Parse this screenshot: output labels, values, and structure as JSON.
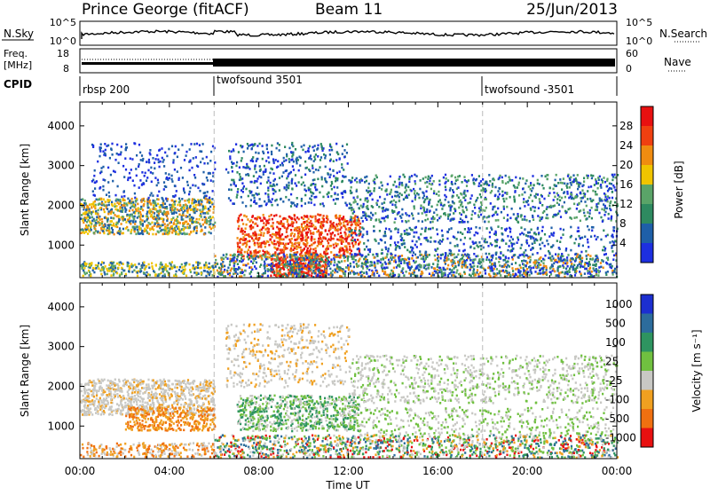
{
  "header": {
    "station": "Prince George (fitACF)",
    "beam": "Beam 11",
    "date": "25/Jun/2013"
  },
  "noise_panel": {
    "left_label": "N.Sky",
    "left_ticks": [
      "10^5",
      "10^0"
    ],
    "right_ticks": [
      "10^5",
      "10^0"
    ],
    "right_label": "N.Search"
  },
  "freq_panel": {
    "left_label_1": "Freq.",
    "left_label_2": "[MHz]",
    "left_ticks": [
      "18",
      "8"
    ],
    "right_ticks": [
      "60",
      "0"
    ],
    "right_label": "Nave"
  },
  "cpid": {
    "label": "CPID",
    "segments": [
      {
        "name": "rbsp 200",
        "start_hour": 0
      },
      {
        "name": "twofsound 3501",
        "start_hour": 6.0
      },
      {
        "name": "twofsound -3501",
        "start_hour": 18.0
      }
    ]
  },
  "x_axis": {
    "label": "Time UT",
    "ticks": [
      "00:00",
      "04:00",
      "08:00",
      "12:00",
      "16:00",
      "20:00",
      "00:00"
    ],
    "range_hours": [
      0,
      24
    ]
  },
  "chart_data": [
    {
      "type": "heatmap",
      "quantity": "Power",
      "ylabel": "Slant Range [km]",
      "ylim": [
        180,
        4600
      ],
      "yticks": [
        1000,
        2000,
        3000,
        4000
      ],
      "colorbar_label": "Power [dB]",
      "colorbar_ticks": [
        "28",
        "24",
        "20",
        "16",
        "12",
        "8",
        "4"
      ],
      "colorbar_levels": [
        0,
        4,
        8,
        12,
        16,
        20,
        24,
        28,
        32
      ],
      "colors": [
        "#1d2fe0",
        "#1e5fa8",
        "#2e8a60",
        "#5aa468",
        "#f0c400",
        "#f08c10",
        "#f04010",
        "#e81010"
      ]
    },
    {
      "type": "heatmap",
      "quantity": "Velocity",
      "ylabel": "Slant Range [km]",
      "ylim": [
        180,
        4600
      ],
      "yticks": [
        1000,
        2000,
        3000,
        4000
      ],
      "colorbar_label": "Velocity [m s⁻¹]",
      "colorbar_ticks": [
        "1000",
        "500",
        "100",
        "25",
        "-25",
        "-100",
        "-500",
        "-1000"
      ],
      "colors": [
        "#1c2fd0",
        "#2c6c9c",
        "#2e9460",
        "#70c040",
        "#c8c8c4",
        "#f0a020",
        "#f07010",
        "#e81010"
      ]
    }
  ]
}
